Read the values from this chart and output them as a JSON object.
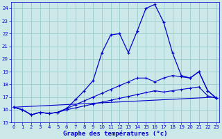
{
  "xlabel": "Graphe des températures (°c)",
  "ylim": [
    15,
    24.5
  ],
  "xlim": [
    -0.3,
    23.3
  ],
  "yticks": [
    15,
    16,
    17,
    18,
    19,
    20,
    21,
    22,
    23,
    24
  ],
  "xticks": [
    0,
    1,
    2,
    3,
    4,
    5,
    6,
    7,
    8,
    9,
    10,
    11,
    12,
    13,
    14,
    15,
    16,
    17,
    18,
    19,
    20,
    21,
    22,
    23
  ],
  "bg_color": "#cce8e8",
  "grid_color": "#99cccc",
  "line_color": "#0000cc",
  "main_line": {
    "x": [
      0,
      1,
      2,
      3,
      4,
      5,
      6,
      7,
      8,
      9,
      10,
      11,
      12,
      13,
      14,
      15,
      16,
      17,
      18,
      19,
      20,
      21,
      22,
      23
    ],
    "y": [
      16.2,
      16.0,
      15.6,
      15.8,
      15.7,
      15.8,
      16.1,
      16.8,
      17.5,
      18.3,
      20.5,
      21.9,
      22.0,
      20.5,
      22.2,
      24.0,
      24.3,
      22.9,
      20.5,
      18.7,
      18.5,
      19.0,
      17.5,
      16.9
    ]
  },
  "line2": {
    "x": [
      0,
      1,
      2,
      3,
      4,
      5,
      6,
      7,
      8,
      9,
      10,
      11,
      12,
      13,
      14,
      15,
      16,
      17,
      18,
      19,
      20,
      21,
      22,
      23
    ],
    "y": [
      16.2,
      16.0,
      15.6,
      15.8,
      15.7,
      15.8,
      16.1,
      16.4,
      16.7,
      17.0,
      17.3,
      17.6,
      17.9,
      18.2,
      18.5,
      18.5,
      18.2,
      18.5,
      18.7,
      18.6,
      18.5,
      19.0,
      17.5,
      16.9
    ]
  },
  "line3": {
    "x": [
      0,
      1,
      2,
      3,
      4,
      5,
      6,
      7,
      8,
      9,
      10,
      11,
      12,
      13,
      14,
      15,
      16,
      17,
      18,
      19,
      20,
      21,
      22,
      23
    ],
    "y": [
      16.2,
      16.0,
      15.6,
      15.8,
      15.7,
      15.8,
      16.0,
      16.15,
      16.3,
      16.45,
      16.6,
      16.75,
      16.9,
      17.05,
      17.2,
      17.35,
      17.5,
      17.4,
      17.5,
      17.6,
      17.7,
      17.8,
      17.1,
      16.9
    ]
  },
  "line4": {
    "x": [
      0,
      23
    ],
    "y": [
      16.2,
      17.0
    ]
  }
}
